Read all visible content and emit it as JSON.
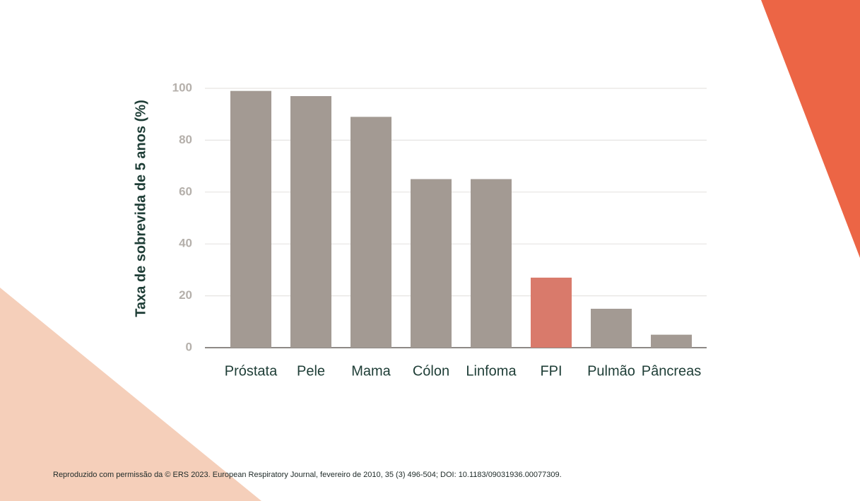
{
  "chart_data": {
    "type": "bar",
    "y_label": "Taxa de sobrevida de 5 anos (%)",
    "categories": [
      "Próstata",
      "Pele",
      "Mama",
      "Cólon",
      "Linfoma",
      "FPI",
      "Pulmão",
      "Pâncreas"
    ],
    "values": [
      99,
      97,
      89,
      65,
      65,
      27,
      15,
      5
    ],
    "colors": [
      "#a39a93",
      "#a39a93",
      "#a39a93",
      "#a39a93",
      "#a39a93",
      "#d97a6b",
      "#a39a93",
      "#a39a93"
    ],
    "ylim": [
      0,
      100
    ],
    "yticks": [
      0,
      20,
      40,
      60,
      80,
      100
    ],
    "grid": true,
    "source": "Reproduzido com permissão da © ERS 2023. European Respiratory Journal, fevereiro de 2010, 35 (3) 496-504; DOI: 10.1183/09031936.00077309."
  }
}
